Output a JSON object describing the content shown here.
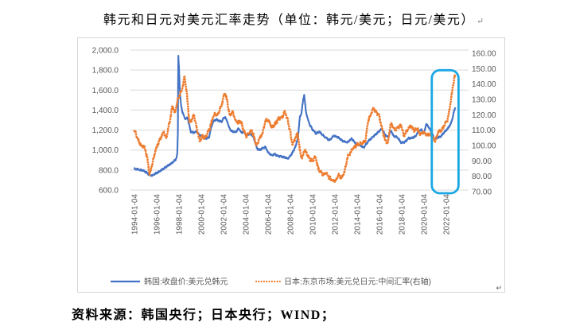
{
  "title": "韩元和日元对美元汇率走势（单位：韩元/美元；日元/美元）",
  "source_note": "资料来源：韩国央行；日本央行；WIND；",
  "marks": {
    "paragraph": "↵"
  },
  "colors": {
    "krw_line": "#4472C4",
    "jpy_line": "#ED7D31",
    "grid": "#D9D9D9",
    "axis_text": "#595959",
    "highlight_box": "#1BA7E3",
    "chart_border": "#D6D6D6",
    "text": "#000000"
  },
  "chart_data": {
    "type": "line",
    "title": "韩元和日元对美元汇率走势（单位：韩元/美元；日元/美元）",
    "grid": true,
    "legend_position": "bottom",
    "x_range": [
      1994,
      2022.85
    ],
    "x_ticks": [
      "1994-01-04",
      "1996-01-04",
      "1998-01-04",
      "2000-01-04",
      "2002-01-04",
      "2004-01-04",
      "2006-01-04",
      "2008-01-04",
      "2010-01-04",
      "2012-01-04",
      "2014-01-04",
      "2016-01-04",
      "2018-01-04",
      "2020-01-04",
      "2022-01-04"
    ],
    "y_left": {
      "min": 600,
      "max": 2000,
      "tick_labels": [
        "2,000.0",
        "1,800.0",
        "1,600.0",
        "1,400.0",
        "1,200.0",
        "1,000.0",
        "800.0",
        "600.0"
      ]
    },
    "y_right": {
      "min": 70,
      "max": 160,
      "tick_labels": [
        "160.00",
        "150.00",
        "140.00",
        "130.00",
        "120.00",
        "110.00",
        "100.00",
        "90.00",
        "80.00",
        "70.00"
      ]
    },
    "highlight_box": {
      "x_range": [
        2020.7,
        2023.1
      ],
      "y_right_range": [
        69,
        149
      ],
      "color": "#1BA7E3"
    },
    "series": [
      {
        "name": "韩国:收盘价:美元兑韩元",
        "axis": "left",
        "color": "#4472C4",
        "line_style": "solid",
        "points": [
          [
            1994.0,
            812
          ],
          [
            1994.3,
            806
          ],
          [
            1994.6,
            800
          ],
          [
            1994.9,
            788
          ],
          [
            1995.1,
            775
          ],
          [
            1995.35,
            752
          ],
          [
            1995.6,
            748
          ],
          [
            1995.9,
            765
          ],
          [
            1996.2,
            782
          ],
          [
            1996.5,
            805
          ],
          [
            1996.8,
            828
          ],
          [
            1997.1,
            850
          ],
          [
            1997.4,
            875
          ],
          [
            1997.6,
            892
          ],
          [
            1997.75,
            915
          ],
          [
            1997.85,
            965
          ],
          [
            1997.9,
            1170
          ],
          [
            1997.93,
            1960
          ],
          [
            1998.0,
            1830
          ],
          [
            1998.07,
            1610
          ],
          [
            1998.15,
            1480
          ],
          [
            1998.3,
            1380
          ],
          [
            1998.45,
            1340
          ],
          [
            1998.6,
            1305
          ],
          [
            1998.75,
            1330
          ],
          [
            1998.9,
            1260
          ],
          [
            1999.05,
            1185
          ],
          [
            1999.3,
            1175
          ],
          [
            1999.6,
            1185
          ],
          [
            1999.85,
            1150
          ],
          [
            2000.1,
            1130
          ],
          [
            2000.4,
            1112
          ],
          [
            2000.7,
            1125
          ],
          [
            2000.9,
            1230
          ],
          [
            2001.1,
            1290
          ],
          [
            2001.35,
            1305
          ],
          [
            2001.6,
            1290
          ],
          [
            2001.85,
            1285
          ],
          [
            2002.0,
            1320
          ],
          [
            2002.15,
            1328
          ],
          [
            2002.35,
            1280
          ],
          [
            2002.55,
            1210
          ],
          [
            2002.8,
            1185
          ],
          [
            2003.1,
            1180
          ],
          [
            2003.35,
            1215
          ],
          [
            2003.6,
            1175
          ],
          [
            2003.85,
            1180
          ],
          [
            2004.1,
            1145
          ],
          [
            2004.35,
            1160
          ],
          [
            2004.6,
            1150
          ],
          [
            2004.8,
            1095
          ],
          [
            2005.0,
            1015
          ],
          [
            2005.25,
            1000
          ],
          [
            2005.5,
            1020
          ],
          [
            2005.75,
            1030
          ],
          [
            2006.0,
            975
          ],
          [
            2006.3,
            950
          ],
          [
            2006.6,
            958
          ],
          [
            2006.9,
            940
          ],
          [
            2007.2,
            935
          ],
          [
            2007.5,
            925
          ],
          [
            2007.8,
            915
          ],
          [
            2008.0,
            940
          ],
          [
            2008.25,
            985
          ],
          [
            2008.5,
            1045
          ],
          [
            2008.7,
            1140
          ],
          [
            2008.85,
            1330
          ],
          [
            2009.0,
            1370
          ],
          [
            2009.15,
            1510
          ],
          [
            2009.25,
            1550
          ],
          [
            2009.4,
            1380
          ],
          [
            2009.6,
            1300
          ],
          [
            2009.8,
            1240
          ],
          [
            2010.0,
            1205
          ],
          [
            2010.3,
            1165
          ],
          [
            2010.6,
            1185
          ],
          [
            2011.0,
            1140
          ],
          [
            2011.5,
            1100
          ],
          [
            2011.9,
            1145
          ],
          [
            2012.3,
            1125
          ],
          [
            2012.7,
            1090
          ],
          [
            2013.1,
            1075
          ],
          [
            2013.5,
            1115
          ],
          [
            2013.9,
            1062
          ],
          [
            2014.3,
            1045
          ],
          [
            2014.6,
            1025
          ],
          [
            2015.0,
            1090
          ],
          [
            2015.5,
            1140
          ],
          [
            2016.0,
            1190
          ],
          [
            2016.2,
            1212
          ],
          [
            2016.5,
            1155
          ],
          [
            2016.8,
            1125
          ],
          [
            2017.0,
            1200
          ],
          [
            2017.3,
            1135
          ],
          [
            2017.6,
            1130
          ],
          [
            2017.95,
            1072
          ],
          [
            2018.3,
            1082
          ],
          [
            2018.6,
            1118
          ],
          [
            2018.9,
            1120
          ],
          [
            2019.2,
            1135
          ],
          [
            2019.5,
            1185
          ],
          [
            2019.75,
            1205
          ],
          [
            2020.0,
            1165
          ],
          [
            2020.2,
            1265
          ],
          [
            2020.45,
            1225
          ],
          [
            2020.7,
            1175
          ],
          [
            2020.95,
            1105
          ],
          [
            2021.2,
            1122
          ],
          [
            2021.5,
            1135
          ],
          [
            2021.8,
            1175
          ],
          [
            2022.0,
            1198
          ],
          [
            2022.2,
            1225
          ],
          [
            2022.4,
            1262
          ],
          [
            2022.55,
            1315
          ],
          [
            2022.7,
            1392
          ],
          [
            2022.82,
            1420
          ]
        ]
      },
      {
        "name": "日本:东京市场:美元兑日元:中间汇率(右轴)",
        "axis": "right",
        "color": "#ED7D31",
        "line_style": "dotted",
        "points": [
          [
            1994.0,
            110
          ],
          [
            1994.3,
            104
          ],
          [
            1994.6,
            100
          ],
          [
            1994.9,
            99
          ],
          [
            1995.15,
            92
          ],
          [
            1995.36,
            81
          ],
          [
            1995.6,
            88
          ],
          [
            1995.93,
            98
          ],
          [
            1996.3,
            104
          ],
          [
            1996.64,
            109
          ],
          [
            1996.86,
            105
          ],
          [
            1997.14,
            115
          ],
          [
            1997.43,
            126
          ],
          [
            1997.64,
            121
          ],
          [
            1997.86,
            129
          ],
          [
            1998.14,
            134
          ],
          [
            1998.36,
            139
          ],
          [
            1998.5,
            145
          ],
          [
            1998.7,
            134
          ],
          [
            1998.93,
            115
          ],
          [
            1999.14,
            117
          ],
          [
            1999.36,
            120
          ],
          [
            1999.57,
            112
          ],
          [
            1999.86,
            103
          ],
          [
            2000.07,
            106
          ],
          [
            2000.36,
            105
          ],
          [
            2000.57,
            108
          ],
          [
            2000.79,
            112
          ],
          [
            2001.0,
            117
          ],
          [
            2001.21,
            121
          ],
          [
            2001.43,
            119
          ],
          [
            2001.64,
            123
          ],
          [
            2001.86,
            127
          ],
          [
            2002.05,
            133
          ],
          [
            2002.15,
            134
          ],
          [
            2002.35,
            128
          ],
          [
            2002.55,
            119
          ],
          [
            2002.8,
            122
          ],
          [
            2003.05,
            117
          ],
          [
            2003.3,
            115
          ],
          [
            2003.55,
            116
          ],
          [
            2003.8,
            110
          ],
          [
            2004.05,
            106
          ],
          [
            2004.3,
            108
          ],
          [
            2004.55,
            110
          ],
          [
            2004.8,
            104
          ],
          [
            2004.95,
            100
          ],
          [
            2005.2,
            104
          ],
          [
            2005.5,
            108
          ],
          [
            2005.8,
            117
          ],
          [
            2006.05,
            116
          ],
          [
            2006.35,
            112
          ],
          [
            2006.65,
            114
          ],
          [
            2006.95,
            118
          ],
          [
            2007.25,
            118
          ],
          [
            2007.5,
            122
          ],
          [
            2007.75,
            117
          ],
          [
            2008.0,
            108
          ],
          [
            2008.2,
            100
          ],
          [
            2008.45,
            105
          ],
          [
            2008.65,
            108
          ],
          [
            2008.85,
            97
          ],
          [
            2009.05,
            91
          ],
          [
            2009.25,
            97
          ],
          [
            2009.5,
            95
          ],
          [
            2009.75,
            91
          ],
          [
            2010.0,
            90
          ],
          [
            2010.25,
            93
          ],
          [
            2010.5,
            85
          ],
          [
            2010.9,
            81
          ],
          [
            2011.2,
            82
          ],
          [
            2011.5,
            79
          ],
          [
            2011.8,
            77
          ],
          [
            2012.05,
            77
          ],
          [
            2012.3,
            81
          ],
          [
            2012.6,
            79
          ],
          [
            2012.9,
            84
          ],
          [
            2013.15,
            93
          ],
          [
            2013.45,
            96
          ],
          [
            2013.65,
            98
          ],
          [
            2013.9,
            100
          ],
          [
            2014.2,
            101
          ],
          [
            2014.5,
            102
          ],
          [
            2014.75,
            103
          ],
          [
            2014.95,
            115
          ],
          [
            2015.15,
            119
          ],
          [
            2015.45,
            124
          ],
          [
            2015.7,
            122
          ],
          [
            2015.95,
            120
          ],
          [
            2016.2,
            112
          ],
          [
            2016.5,
            104
          ],
          [
            2016.75,
            101
          ],
          [
            2016.95,
            112
          ],
          [
            2017.1,
            114
          ],
          [
            2017.4,
            110
          ],
          [
            2017.7,
            112
          ],
          [
            2017.95,
            113
          ],
          [
            2018.2,
            106
          ],
          [
            2018.5,
            110
          ],
          [
            2018.8,
            113
          ],
          [
            2019.1,
            110
          ],
          [
            2019.4,
            111
          ],
          [
            2019.65,
            107
          ],
          [
            2019.95,
            109
          ],
          [
            2020.2,
            107
          ],
          [
            2020.5,
            107
          ],
          [
            2020.8,
            105
          ],
          [
            2021.0,
            103
          ],
          [
            2021.3,
            109
          ],
          [
            2021.6,
            110
          ],
          [
            2021.9,
            114
          ],
          [
            2022.1,
            116
          ],
          [
            2022.25,
            122
          ],
          [
            2022.4,
            129
          ],
          [
            2022.55,
            136
          ],
          [
            2022.7,
            143
          ],
          [
            2022.8,
            146
          ]
        ]
      }
    ]
  }
}
